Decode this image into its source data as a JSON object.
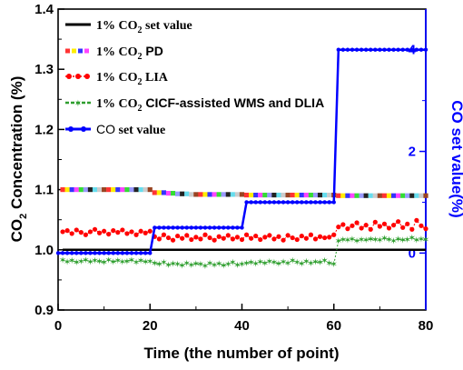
{
  "chart_data": {
    "type": "line",
    "xlabel": "Time (the number of point)",
    "ylabel_left": "CO2 Concentration (%)",
    "ylabel_right": "CO set value(%)",
    "x_ticks": [
      "0",
      "20",
      "40",
      "60",
      "80"
    ],
    "y_left_ticks": [
      "0.9",
      "1.0",
      "1.1",
      "1.2",
      "1.3",
      "1.4"
    ],
    "y_right_ticks": [
      "0",
      "2",
      "4"
    ],
    "xlim": [
      0,
      80
    ],
    "ylim_left": [
      0.9,
      1.4
    ],
    "ylim_right": [
      -1.12,
      4.8
    ],
    "legend_location": "top-left",
    "grid": false,
    "colors": {
      "set_value": "#000000",
      "pd_palette": [
        "#ff3333",
        "#ffee00",
        "#3333ff",
        "#ff44ff",
        "#33dd33",
        "#9999ff",
        "#222222",
        "#66ddee",
        "#cccccc",
        "#994422"
      ],
      "lia": "#ff0000",
      "wms_dlia": "#2e9e2e",
      "co_set": "#0000ff",
      "right_axis": "#0000ff"
    },
    "series": [
      {
        "name": "1% CO2 set value",
        "axis": "left",
        "x": [
          1,
          80
        ],
        "y": [
          1.0,
          1.0
        ]
      },
      {
        "name": "1% CO2 PD",
        "axis": "left",
        "x": [
          1,
          2,
          3,
          4,
          5,
          6,
          7,
          8,
          9,
          10,
          11,
          12,
          13,
          14,
          15,
          16,
          17,
          18,
          19,
          20,
          21,
          22,
          23,
          24,
          25,
          26,
          27,
          28,
          29,
          30,
          31,
          32,
          33,
          34,
          35,
          36,
          37,
          38,
          39,
          40,
          41,
          42,
          43,
          44,
          45,
          46,
          47,
          48,
          49,
          50,
          51,
          52,
          53,
          54,
          55,
          56,
          57,
          58,
          59,
          60,
          61,
          62,
          63,
          64,
          65,
          66,
          67,
          68,
          69,
          70,
          71,
          72,
          73,
          74,
          75,
          76,
          77,
          78,
          79,
          80
        ],
        "y": [
          1.1,
          1.1,
          1.1,
          1.1,
          1.1,
          1.1,
          1.1,
          1.1,
          1.1,
          1.1,
          1.1,
          1.1,
          1.1,
          1.1,
          1.1,
          1.1,
          1.1,
          1.1,
          1.1,
          1.1,
          1.095,
          1.095,
          1.095,
          1.094,
          1.094,
          1.093,
          1.093,
          1.093,
          1.092,
          1.092,
          1.092,
          1.092,
          1.092,
          1.092,
          1.092,
          1.092,
          1.092,
          1.092,
          1.092,
          1.092,
          1.091,
          1.091,
          1.091,
          1.091,
          1.091,
          1.091,
          1.091,
          1.091,
          1.091,
          1.091,
          1.091,
          1.091,
          1.091,
          1.091,
          1.091,
          1.091,
          1.091,
          1.091,
          1.091,
          1.091,
          1.09,
          1.09,
          1.09,
          1.09,
          1.09,
          1.09,
          1.09,
          1.09,
          1.09,
          1.09,
          1.09,
          1.09,
          1.09,
          1.09,
          1.09,
          1.09,
          1.09,
          1.09,
          1.09,
          1.09
        ]
      },
      {
        "name": "1% CO2 LIA",
        "axis": "left",
        "x": [
          1,
          2,
          3,
          4,
          5,
          6,
          7,
          8,
          9,
          10,
          11,
          12,
          13,
          14,
          15,
          16,
          17,
          18,
          19,
          20,
          21,
          22,
          23,
          24,
          25,
          26,
          27,
          28,
          29,
          30,
          31,
          32,
          33,
          34,
          35,
          36,
          37,
          38,
          39,
          40,
          41,
          42,
          43,
          44,
          45,
          46,
          47,
          48,
          49,
          50,
          51,
          52,
          53,
          54,
          55,
          56,
          57,
          58,
          59,
          60,
          61,
          62,
          63,
          64,
          65,
          66,
          67,
          68,
          69,
          70,
          71,
          72,
          73,
          74,
          75,
          76,
          77,
          78,
          79,
          80
        ],
        "y": [
          1.03,
          1.032,
          1.027,
          1.033,
          1.029,
          1.025,
          1.03,
          1.034,
          1.028,
          1.031,
          1.026,
          1.032,
          1.029,
          1.033,
          1.027,
          1.03,
          1.025,
          1.031,
          1.028,
          1.031,
          1.022,
          1.018,
          1.025,
          1.02,
          1.016,
          1.023,
          1.019,
          1.024,
          1.017,
          1.021,
          1.018,
          1.025,
          1.02,
          1.016,
          1.022,
          1.019,
          1.024,
          1.018,
          1.021,
          1.017,
          1.025,
          1.019,
          1.023,
          1.017,
          1.021,
          1.024,
          1.018,
          1.022,
          1.016,
          1.024,
          1.02,
          1.017,
          1.023,
          1.019,
          1.025,
          1.018,
          1.022,
          1.02,
          1.021,
          1.025,
          1.038,
          1.042,
          1.035,
          1.04,
          1.045,
          1.036,
          1.041,
          1.034,
          1.046,
          1.039,
          1.043,
          1.036,
          1.041,
          1.047,
          1.037,
          1.043,
          1.034,
          1.049,
          1.04,
          1.035
        ]
      },
      {
        "name": "1% CO2 CICF-assisted WMS and DLIA",
        "axis": "left",
        "x": [
          1,
          2,
          3,
          4,
          5,
          6,
          7,
          8,
          9,
          10,
          11,
          12,
          13,
          14,
          15,
          16,
          17,
          18,
          19,
          20,
          21,
          22,
          23,
          24,
          25,
          26,
          27,
          28,
          29,
          30,
          31,
          32,
          33,
          34,
          35,
          36,
          37,
          38,
          39,
          40,
          41,
          42,
          43,
          44,
          45,
          46,
          47,
          48,
          49,
          50,
          51,
          52,
          53,
          54,
          55,
          56,
          57,
          58,
          59,
          60,
          61,
          62,
          63,
          64,
          65,
          66,
          67,
          68,
          69,
          70,
          71,
          72,
          73,
          74,
          75,
          76,
          77,
          78,
          79,
          80
        ],
        "y": [
          0.983,
          0.98,
          0.982,
          0.979,
          0.981,
          0.983,
          0.98,
          0.982,
          0.981,
          0.979,
          0.983,
          0.98,
          0.982,
          0.98,
          0.981,
          0.983,
          0.979,
          0.982,
          0.98,
          0.981,
          0.978,
          0.976,
          0.979,
          0.975,
          0.977,
          0.976,
          0.974,
          0.978,
          0.975,
          0.977,
          0.976,
          0.973,
          0.978,
          0.975,
          0.977,
          0.974,
          0.976,
          0.979,
          0.975,
          0.976,
          0.978,
          0.979,
          0.977,
          0.98,
          0.978,
          0.981,
          0.979,
          0.977,
          0.98,
          0.978,
          0.982,
          0.979,
          0.977,
          0.981,
          0.978,
          0.98,
          0.979,
          0.982,
          0.978,
          0.976,
          1.015,
          1.017,
          1.016,
          1.018,
          1.015,
          1.017,
          1.016,
          1.018,
          1.017,
          1.016,
          1.019,
          1.017,
          1.015,
          1.018,
          1.016,
          1.017,
          1.02,
          1.016,
          1.018,
          1.017
        ]
      },
      {
        "name": "CO set value",
        "axis": "right",
        "x": [
          0,
          1,
          2,
          3,
          4,
          5,
          6,
          7,
          8,
          9,
          10,
          11,
          12,
          13,
          14,
          15,
          16,
          17,
          18,
          19,
          20,
          21,
          22,
          23,
          24,
          25,
          26,
          27,
          28,
          29,
          30,
          31,
          32,
          33,
          34,
          35,
          36,
          37,
          38,
          39,
          40,
          41,
          42,
          43,
          44,
          45,
          46,
          47,
          48,
          49,
          50,
          51,
          52,
          53,
          54,
          55,
          56,
          57,
          58,
          59,
          60,
          61,
          62,
          63,
          64,
          65,
          66,
          67,
          68,
          69,
          70,
          71,
          72,
          73,
          74,
          75,
          76,
          77,
          78,
          79,
          80
        ],
        "y": [
          0,
          0,
          0,
          0,
          0,
          0,
          0,
          0,
          0,
          0,
          0,
          0,
          0,
          0,
          0,
          0,
          0,
          0,
          0,
          0,
          0,
          0.5,
          0.5,
          0.5,
          0.5,
          0.5,
          0.5,
          0.5,
          0.5,
          0.5,
          0.5,
          0.5,
          0.5,
          0.5,
          0.5,
          0.5,
          0.5,
          0.5,
          0.5,
          0.5,
          0.5,
          1,
          1,
          1,
          1,
          1,
          1,
          1,
          1,
          1,
          1,
          1,
          1,
          1,
          1,
          1,
          1,
          1,
          1,
          1,
          1,
          4,
          4,
          4,
          4,
          4,
          4,
          4,
          4,
          4,
          4,
          4,
          4,
          4,
          4,
          4,
          4,
          4,
          4,
          4,
          4
        ]
      }
    ]
  }
}
